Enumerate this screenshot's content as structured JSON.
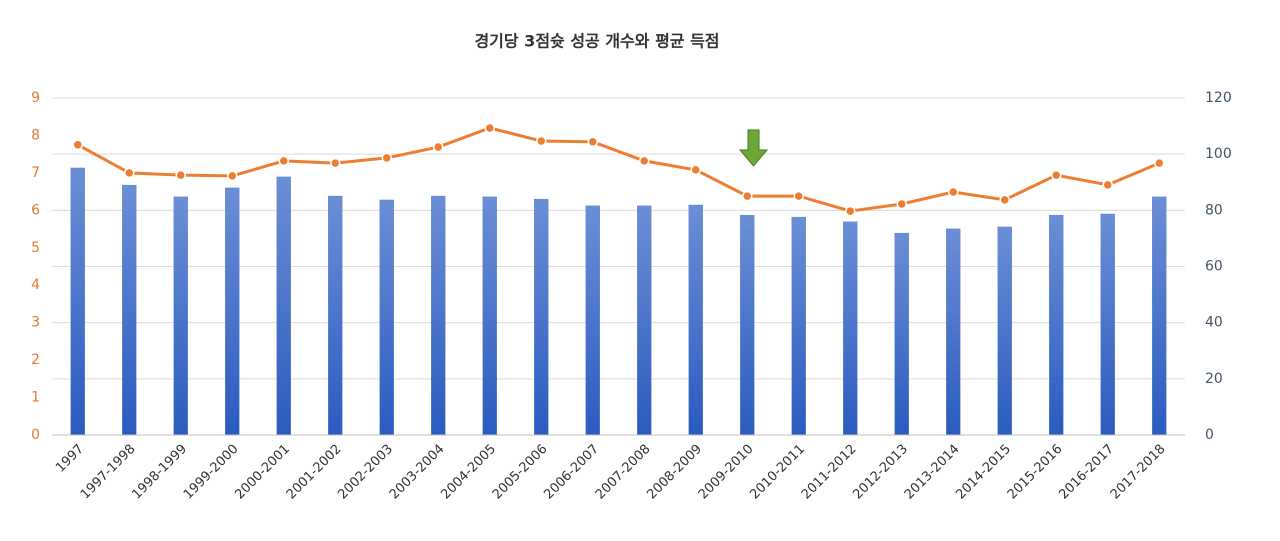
{
  "chart_data": {
    "type": "combo",
    "title": "경기당 3점슛 성공 개수와 평균 득점",
    "categories": [
      "1997",
      "1997-1998",
      "1998-1999",
      "1999-2000",
      "2000-2001",
      "2001-2002",
      "2002-2003",
      "2003-2004",
      "2004-2005",
      "2005-2006",
      "2006-2007",
      "2007-2008",
      "2008-2009",
      "2009-2010",
      "2010-2011",
      "2011-2012",
      "2012-2013",
      "2013-2014",
      "2014-2015",
      "2015-2016",
      "2016-2017",
      "2017-2018"
    ],
    "series": [
      {
        "type": "bar",
        "axis": "y2",
        "color": "#4472c4",
        "values": [
          95.1,
          89.0,
          84.8,
          88.0,
          91.9,
          85.1,
          83.7,
          85.1,
          84.8,
          84.0,
          81.6,
          81.6,
          81.9,
          78.3,
          77.6,
          75.9,
          71.9,
          73.4,
          74.1,
          78.3,
          78.7,
          84.8
        ]
      },
      {
        "type": "line",
        "axis": "y",
        "color": "#ed7d31",
        "values": [
          7.75,
          7.0,
          6.94,
          6.92,
          7.32,
          7.26,
          7.4,
          7.69,
          8.2,
          7.85,
          7.83,
          7.32,
          7.08,
          6.38,
          6.38,
          5.98,
          6.17,
          6.49,
          6.28,
          6.94,
          6.68,
          7.26
        ]
      }
    ],
    "ylim": [
      0,
      9
    ],
    "yticks": [
      0,
      1,
      2,
      3,
      4,
      5,
      6,
      7,
      8,
      9
    ],
    "y2lim": [
      0,
      120
    ],
    "y2ticks": [
      0,
      20,
      40,
      60,
      80,
      100,
      120
    ],
    "grid": true
  }
}
